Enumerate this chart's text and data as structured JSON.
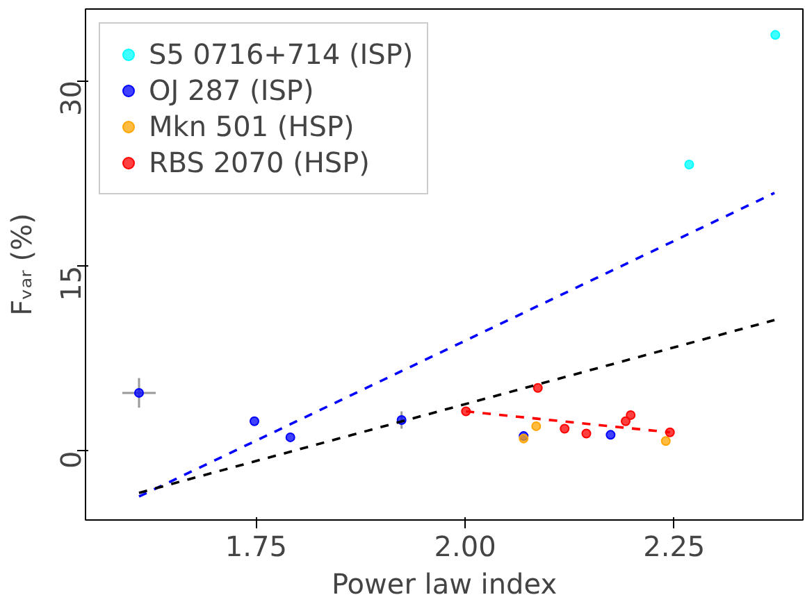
{
  "chart_data": {
    "type": "scatter",
    "xlabel": "Power law index",
    "ylabel": "Fᵥₐᵣ (%)",
    "xlim": [
      1.546,
      2.404
    ],
    "ylim": [
      -5.6,
      35.8
    ],
    "xticks": [
      1.75,
      {
        "value": 2.0,
        "label": "2.00"
      },
      2.25
    ],
    "yticks": [
      0,
      15,
      30
    ],
    "grid": false,
    "legend": "top left",
    "marker": "circle",
    "series": [
      {
        "name": "S5 0716+714 (ISP)",
        "color": "#00ffff",
        "x": [
          2.268,
          2.371
        ],
        "values": [
          23.2,
          33.7
        ]
      },
      {
        "name": "OJ 287 (ISP)",
        "color": "#0000ff",
        "x": [
          1.61,
          1.748,
          1.791,
          1.924,
          2.07,
          2.174
        ],
        "values": [
          4.7,
          2.4,
          1.1,
          2.5,
          1.2,
          1.3
        ],
        "errors": [
          1.2,
          null,
          null,
          0.7,
          null,
          null
        ],
        "xerrors": [
          0.02,
          null,
          null,
          null,
          null,
          null
        ]
      },
      {
        "name": "Mkn 501 (HSP)",
        "color": "#ffa500",
        "x": [
          2.07,
          2.085,
          2.24
        ],
        "values": [
          1.0,
          2.0,
          0.8
        ]
      },
      {
        "name": "RBS 2070 (HSP)",
        "color": "#ff0000",
        "x": [
          2.001,
          2.087,
          2.119,
          2.145,
          2.192,
          2.198,
          2.245
        ],
        "values": [
          3.2,
          5.1,
          1.8,
          1.4,
          2.4,
          2.9,
          1.5
        ]
      },
      {
        "type": "line",
        "color": "#0000ff",
        "line_style": "dashed",
        "marker": "none",
        "x": [
          1.61,
          2.37
        ],
        "values": [
          -3.7,
          20.9
        ]
      },
      {
        "type": "line",
        "color": "#000000",
        "line_style": "dashed",
        "marker": "none",
        "x": [
          1.61,
          2.37
        ],
        "values": [
          -3.4,
          10.6
        ]
      },
      {
        "type": "line",
        "color": "#ff0000",
        "line_style": "dashed",
        "marker": "none",
        "x": [
          2.001,
          2.245
        ],
        "values": [
          3.2,
          1.5
        ]
      }
    ]
  }
}
